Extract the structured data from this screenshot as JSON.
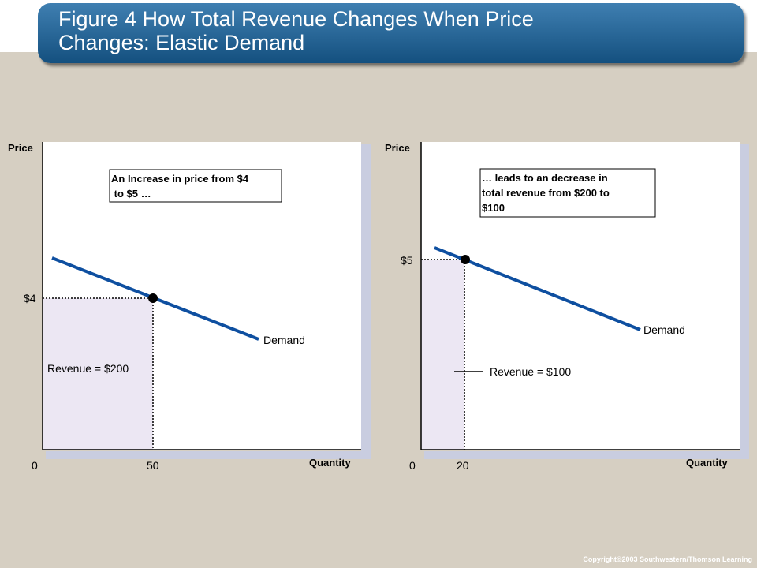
{
  "header": {
    "title_line1": "Figure 4 How Total Revenue Changes When Price",
    "title_line2": "Changes: Elastic Demand"
  },
  "footer": {
    "copyright": "Copyright©2003  Southwestern/Thomson Learning"
  },
  "colors": {
    "title_bar": "#1f5f92",
    "demand_line": "#0e4fa0",
    "revenue_fill": "#ece7f3",
    "plot_shadow": "#c9cde0",
    "background": "#d6cfc2"
  },
  "chart_data": [
    {
      "type": "line",
      "ylabel": "Price",
      "xlabel": "Quantity",
      "origin_label": "0",
      "x_tick": "50",
      "y_tick": "$4",
      "point": {
        "quantity": 50,
        "price": 4
      },
      "curve_label": "Demand",
      "annotation": [
        "An Increase in price from $4",
        " to $5 …"
      ],
      "revenue_label": "Revenue  = $200"
    },
    {
      "type": "line",
      "ylabel": "Price",
      "xlabel": "Quantity",
      "origin_label": "0",
      "x_tick": "20",
      "y_tick": "$5",
      "point": {
        "quantity": 20,
        "price": 5
      },
      "curve_label": "Demand",
      "annotation": [
        "… leads to an decrease in",
        "total revenue from $200 to",
        "$100"
      ],
      "revenue_label": "Revenue  = $100"
    }
  ]
}
